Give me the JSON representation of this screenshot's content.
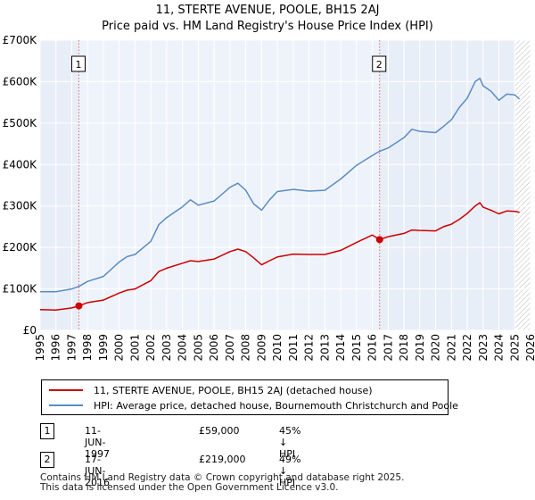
{
  "chart_data": {
    "type": "line",
    "title": "11, STERTE AVENUE, POOLE, BH15 2AJ",
    "subtitle": "Price paid vs. HM Land Registry's House Price Index (HPI)",
    "xlim": [
      1995,
      2026
    ],
    "ylim": [
      0,
      700000
    ],
    "x_ticks": [
      1995,
      1996,
      1997,
      1998,
      1999,
      2000,
      2001,
      2002,
      2003,
      2004,
      2005,
      2006,
      2007,
      2008,
      2009,
      2010,
      2011,
      2012,
      2013,
      2014,
      2015,
      2016,
      2017,
      2018,
      2019,
      2020,
      2021,
      2022,
      2023,
      2024,
      2025,
      2026
    ],
    "y_ticks": [
      {
        "value": 0,
        "label": "£0"
      },
      {
        "value": 100000,
        "label": "£100K"
      },
      {
        "value": 200000,
        "label": "£200K"
      },
      {
        "value": 300000,
        "label": "£300K"
      },
      {
        "value": 400000,
        "label": "£400K"
      },
      {
        "value": 500000,
        "label": "£500K"
      },
      {
        "value": 600000,
        "label": "£600K"
      },
      {
        "value": 700000,
        "label": "£700K"
      }
    ],
    "ownership_shade": [
      1997.45,
      2016.46
    ],
    "forecast_start": 2025.0,
    "series": [
      {
        "name": "11, STERTE AVENUE, POOLE, BH15 2AJ (detached house)",
        "color": "#cc0000",
        "points": [
          [
            1995.0,
            50000
          ],
          [
            1996.0,
            49000
          ],
          [
            1997.0,
            54000
          ],
          [
            1997.45,
            59000
          ],
          [
            1998.0,
            67000
          ],
          [
            1999.0,
            73000
          ],
          [
            2000.0,
            90000
          ],
          [
            2000.5,
            97000
          ],
          [
            2001.0,
            100000
          ],
          [
            2002.0,
            120000
          ],
          [
            2002.5,
            142000
          ],
          [
            2003.0,
            150000
          ],
          [
            2004.0,
            162000
          ],
          [
            2004.5,
            168000
          ],
          [
            2005.0,
            166000
          ],
          [
            2006.0,
            172000
          ],
          [
            2007.0,
            190000
          ],
          [
            2007.5,
            196000
          ],
          [
            2008.0,
            190000
          ],
          [
            2008.5,
            175000
          ],
          [
            2009.0,
            158000
          ],
          [
            2009.5,
            168000
          ],
          [
            2010.0,
            177000
          ],
          [
            2011.0,
            184000
          ],
          [
            2012.0,
            183000
          ],
          [
            2013.0,
            183000
          ],
          [
            2014.0,
            193000
          ],
          [
            2015.0,
            212000
          ],
          [
            2016.0,
            230000
          ],
          [
            2016.46,
            219000
          ],
          [
            2017.0,
            226000
          ],
          [
            2018.0,
            234000
          ],
          [
            2018.5,
            242000
          ],
          [
            2019.0,
            241000
          ],
          [
            2020.0,
            240000
          ],
          [
            2020.5,
            250000
          ],
          [
            2021.0,
            256000
          ],
          [
            2021.5,
            268000
          ],
          [
            2022.0,
            282000
          ],
          [
            2022.5,
            300000
          ],
          [
            2022.8,
            308000
          ],
          [
            2023.0,
            297000
          ],
          [
            2023.5,
            290000
          ],
          [
            2024.0,
            281000
          ],
          [
            2024.5,
            288000
          ],
          [
            2025.0,
            287000
          ],
          [
            2025.3,
            285000
          ]
        ]
      },
      {
        "name": "HPI: Average price, detached house, Bournemouth Christchurch and Poole",
        "color": "#5b8cc4",
        "points": [
          [
            1995.0,
            93000
          ],
          [
            1996.0,
            93000
          ],
          [
            1997.0,
            100000
          ],
          [
            1997.45,
            106000
          ],
          [
            1998.0,
            118000
          ],
          [
            1999.0,
            130000
          ],
          [
            2000.0,
            165000
          ],
          [
            2000.5,
            178000
          ],
          [
            2001.0,
            183000
          ],
          [
            2002.0,
            215000
          ],
          [
            2002.5,
            255000
          ],
          [
            2003.0,
            272000
          ],
          [
            2004.0,
            298000
          ],
          [
            2004.5,
            315000
          ],
          [
            2005.0,
            302000
          ],
          [
            2006.0,
            312000
          ],
          [
            2007.0,
            345000
          ],
          [
            2007.5,
            355000
          ],
          [
            2008.0,
            338000
          ],
          [
            2008.5,
            305000
          ],
          [
            2009.0,
            290000
          ],
          [
            2009.5,
            315000
          ],
          [
            2010.0,
            335000
          ],
          [
            2011.0,
            340000
          ],
          [
            2012.0,
            336000
          ],
          [
            2013.0,
            338000
          ],
          [
            2014.0,
            365000
          ],
          [
            2015.0,
            398000
          ],
          [
            2016.0,
            422000
          ],
          [
            2016.46,
            432000
          ],
          [
            2017.0,
            440000
          ],
          [
            2018.0,
            465000
          ],
          [
            2018.5,
            485000
          ],
          [
            2019.0,
            480000
          ],
          [
            2020.0,
            477000
          ],
          [
            2020.5,
            492000
          ],
          [
            2021.0,
            508000
          ],
          [
            2021.5,
            538000
          ],
          [
            2022.0,
            560000
          ],
          [
            2022.5,
            600000
          ],
          [
            2022.8,
            608000
          ],
          [
            2023.0,
            590000
          ],
          [
            2023.5,
            577000
          ],
          [
            2024.0,
            555000
          ],
          [
            2024.5,
            570000
          ],
          [
            2025.0,
            568000
          ],
          [
            2025.3,
            558000
          ]
        ]
      }
    ],
    "sale_markers": [
      {
        "x": 1997.45,
        "y": 59000,
        "label": "1"
      },
      {
        "x": 2016.46,
        "y": 219000,
        "label": "2"
      }
    ],
    "legend": [
      {
        "label": "11, STERTE AVENUE, POOLE, BH15 2AJ (detached house)",
        "color": "#cc0000"
      },
      {
        "label": "HPI: Average price, detached house, Bournemouth Christchurch and Poole",
        "color": "#5b8cc4"
      }
    ]
  },
  "sales": [
    {
      "num": "1",
      "date": "11-JUN-1997",
      "price": "£59,000",
      "hpi": "45% ↓ HPI"
    },
    {
      "num": "2",
      "date": "17-JUN-2016",
      "price": "£219,000",
      "hpi": "49% ↓ HPI"
    }
  ],
  "footer": {
    "line1": "Contains HM Land Registry data © Crown copyright and database right 2025.",
    "line2": "This data is licensed under the Open Government Licence v3.0."
  },
  "colors": {
    "price_line": "#cc0000",
    "hpi_line": "#5b8cc4",
    "plot_bg": "#e8eef7",
    "grid": "#ffffff",
    "marker_line": "#e06666"
  }
}
